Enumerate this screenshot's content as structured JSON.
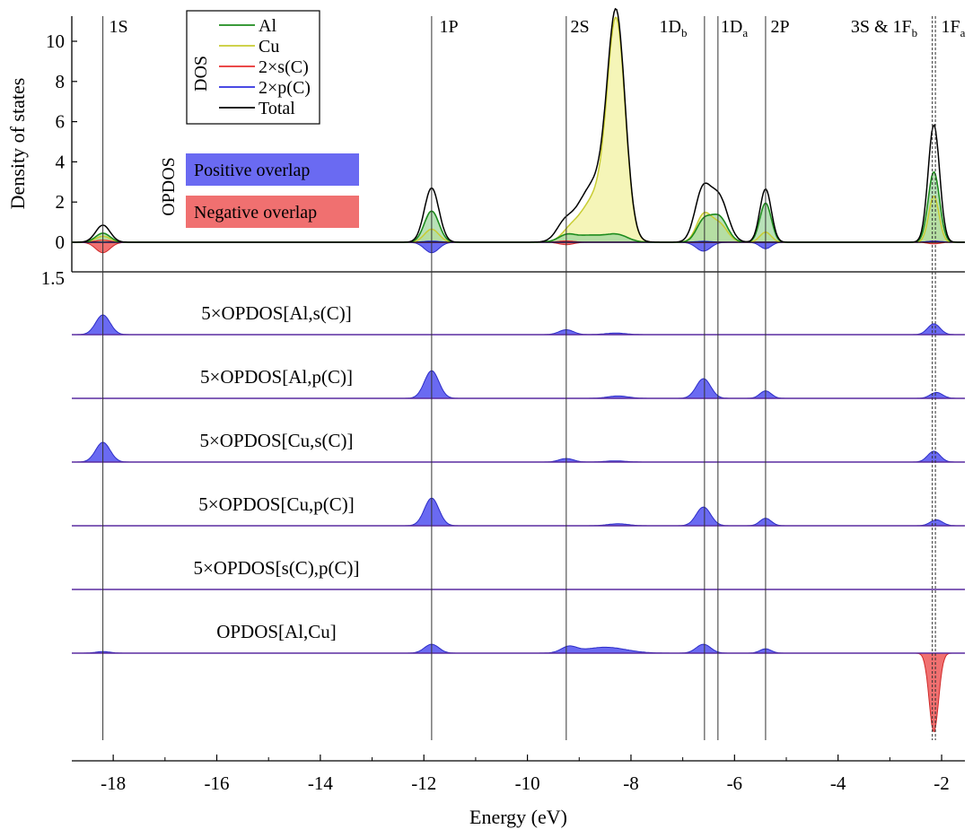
{
  "chart_data": {
    "type": "area",
    "xlabel": "Energy (eV)",
    "ylabel": "Density of states",
    "xlim": [
      -18.8,
      -1.55
    ],
    "xticks": [
      -18,
      -16,
      -14,
      -12,
      -10,
      -8,
      -6,
      -4,
      -2
    ],
    "dos_panel": {
      "ylim": [
        -1.5,
        11.2
      ],
      "yticks": [
        0,
        2,
        4,
        6,
        8,
        10
      ],
      "ytick_extra": "1.5",
      "legend_group_label": "DOS",
      "opdos_group_label": "OPDOS",
      "legend_placement": "top-left",
      "colors": {
        "Al": "#1e8c1e",
        "Cu": "#c8cc32",
        "Cu_fill": "#f4f4b4",
        "s": "#e83030",
        "p": "#3030e0",
        "total": "#000000",
        "positive": "#6a6af2",
        "negative": "#f07070"
      },
      "series": [
        {
          "name": "Al",
          "legend": "Al",
          "peaks": [
            [
              -18.2,
              0.45,
              0.14
            ],
            [
              -11.85,
              1.55,
              0.14
            ],
            [
              -9.25,
              0.25,
              0.15
            ],
            [
              -8.8,
              0.35,
              0.35
            ],
            [
              -8.25,
              0.3,
              0.2
            ],
            [
              -6.6,
              1.0,
              0.14
            ],
            [
              -6.3,
              1.25,
              0.16
            ],
            [
              -5.4,
              1.95,
              0.11
            ],
            [
              -2.15,
              3.5,
              0.11
            ]
          ]
        },
        {
          "name": "Cu",
          "legend": "Cu",
          "peaks": [
            [
              -18.2,
              0.3,
              0.14
            ],
            [
              -11.85,
              0.65,
              0.14
            ],
            [
              -9.2,
              0.3,
              0.15
            ],
            [
              -8.65,
              2.3,
              0.32
            ],
            [
              -8.28,
              10.0,
              0.17
            ],
            [
              -6.6,
              1.3,
              0.14
            ],
            [
              -6.3,
              0.9,
              0.16
            ],
            [
              -5.4,
              0.5,
              0.11
            ],
            [
              -2.15,
              2.3,
              0.1
            ]
          ]
        },
        {
          "name": "2×s(C)",
          "legend": "2×s(C)",
          "peaks": [
            [
              -18.2,
              0.1,
              0.14
            ],
            [
              -9.25,
              0.06,
              0.14
            ],
            [
              -2.15,
              0.05,
              0.12
            ]
          ]
        },
        {
          "name": "2×p(C)",
          "legend": "2×p(C)",
          "peaks": [
            [
              -11.85,
              0.05,
              0.14
            ],
            [
              -6.6,
              0.04,
              0.14
            ],
            [
              -2.15,
              0.05,
              0.12
            ]
          ]
        },
        {
          "name": "Total",
          "legend": "Total",
          "peaks": [
            [
              -18.2,
              0.85,
              0.14
            ],
            [
              -11.85,
              2.7,
              0.14
            ],
            [
              -9.3,
              0.6,
              0.15
            ],
            [
              -8.7,
              2.9,
              0.33
            ],
            [
              -8.28,
              10.3,
              0.17
            ],
            [
              -6.62,
              2.45,
              0.15
            ],
            [
              -6.3,
              2.2,
              0.17
            ],
            [
              -5.4,
              2.65,
              0.11
            ],
            [
              -2.15,
              5.85,
              0.11
            ]
          ]
        }
      ],
      "opdos_positive_peaks": [
        [
          -11.85,
          0.65,
          0.14
        ],
        [
          -6.6,
          0.55,
          0.14
        ],
        [
          -5.4,
          0.4,
          0.11
        ]
      ],
      "opdos_negative_peaks": [
        [
          -18.2,
          0.65,
          0.14
        ],
        [
          -9.25,
          0.15,
          0.14
        ],
        [
          -2.15,
          0.1,
          0.12
        ]
      ],
      "overlap_legend": [
        {
          "label": "Positive overlap",
          "color": "#6a6af2"
        },
        {
          "label": "Negative overlap",
          "color": "#f07070"
        }
      ]
    },
    "opdos_panels": [
      {
        "label": "5×OPDOS[Al,s(C)]",
        "peaks": [
          [
            -18.2,
            1.0,
            0.14
          ],
          [
            -9.25,
            0.25,
            0.14
          ],
          [
            -8.3,
            0.08,
            0.2
          ],
          [
            -2.15,
            0.55,
            0.12
          ]
        ]
      },
      {
        "label": "5×OPDOS[Al,p(C)]",
        "peaks": [
          [
            -11.85,
            1.4,
            0.14
          ],
          [
            -8.25,
            0.12,
            0.2
          ],
          [
            -6.6,
            1.0,
            0.14
          ],
          [
            -5.4,
            0.38,
            0.11
          ],
          [
            -2.1,
            0.3,
            0.12
          ]
        ]
      },
      {
        "label": "5×OPDOS[Cu,s(C)]",
        "peaks": [
          [
            -18.2,
            1.0,
            0.14
          ],
          [
            -9.25,
            0.18,
            0.14
          ],
          [
            -8.3,
            0.06,
            0.2
          ],
          [
            -2.15,
            0.55,
            0.12
          ]
        ]
      },
      {
        "label": "5×OPDOS[Cu,p(C)]",
        "peaks": [
          [
            -11.85,
            1.4,
            0.14
          ],
          [
            -8.25,
            0.1,
            0.2
          ],
          [
            -6.6,
            0.95,
            0.14
          ],
          [
            -5.4,
            0.38,
            0.11
          ],
          [
            -2.1,
            0.3,
            0.12
          ]
        ]
      },
      {
        "label": "5×OPDOS[s(C),p(C)]",
        "peaks": []
      },
      {
        "label": "OPDOS[Al,Cu]",
        "peaks": [
          [
            -18.2,
            0.08,
            0.14
          ],
          [
            -11.85,
            0.45,
            0.14
          ],
          [
            -9.2,
            0.3,
            0.15
          ],
          [
            -8.5,
            0.3,
            0.4
          ],
          [
            -6.6,
            0.45,
            0.14
          ],
          [
            -5.4,
            0.22,
            0.11
          ],
          [
            -2.15,
            -4.0,
            0.09
          ]
        ]
      }
    ],
    "levels": [
      {
        "main": "1S",
        "sub": "",
        "energy": -18.2,
        "style": "solid"
      },
      {
        "main": "1P",
        "sub": "",
        "energy": -11.85,
        "style": "solid"
      },
      {
        "main": "2S",
        "sub": "",
        "energy": -9.25,
        "style": "solid"
      },
      {
        "main": "1D",
        "sub": "b",
        "energy": -6.58,
        "style": "solid"
      },
      {
        "main": "1D",
        "sub": "a",
        "energy": -6.32,
        "style": "solid"
      },
      {
        "main": "2P",
        "sub": "",
        "energy": -5.4,
        "style": "solid"
      },
      {
        "main": "3S & 1F",
        "sub": "b",
        "energy": -2.18,
        "style": "dashed"
      },
      {
        "main": "1F",
        "sub": "a",
        "energy": -2.12,
        "style": "dashed"
      }
    ]
  }
}
